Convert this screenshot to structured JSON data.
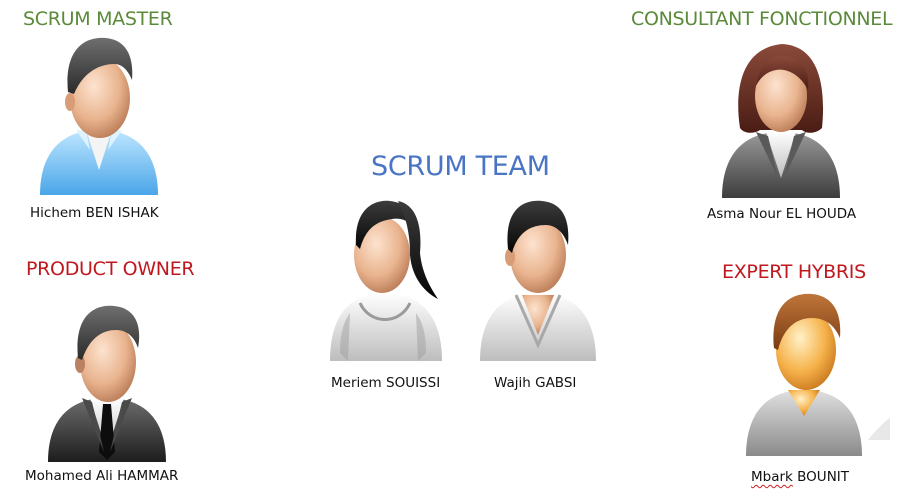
{
  "roles": {
    "scrum_master": {
      "title": "SCRUM MASTER",
      "name": "Hichem BEN ISHAK",
      "icon": "man-blue-shirt-icon"
    },
    "product_owner": {
      "title": "PRODUCT OWNER",
      "name": "Mohamed Ali HAMMAR",
      "icon": "man-black-suit-icon"
    },
    "consultant": {
      "title": "CONSULTANT FONCTIONNEL",
      "name": "Asma Nour EL HOUDA",
      "icon": "woman-gray-jacket-icon"
    },
    "expert": {
      "title": "EXPERT HYBRIS",
      "name_prefix": "Mbark",
      "name_suffix": "BOUNIT",
      "icon": "man-gray-shirt-icon"
    }
  },
  "team": {
    "title": "SCRUM TEAM",
    "members": [
      {
        "name": "Meriem SOUISSI",
        "icon": "woman-ponytail-icon"
      },
      {
        "name": "Wajih GABSI",
        "icon": "man-white-robe-icon"
      }
    ]
  },
  "colors": {
    "green_title": "#5a8a3a",
    "red_title": "#c0181f",
    "blue_title": "#4a74c4"
  }
}
